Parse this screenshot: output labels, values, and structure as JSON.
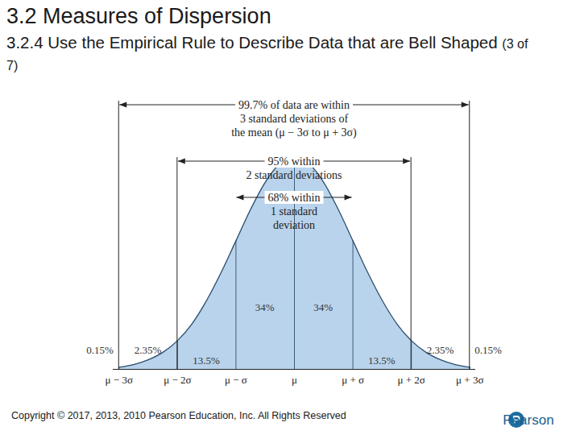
{
  "chart_data": {
    "type": "area",
    "title": "3.2 Measures of Dispersion",
    "subtitle": "3.2.4 Use the Empirical Rule to Describe Data that are Bell Shaped",
    "subtitle_suffix": "(3 of 7)",
    "x": [
      -3,
      -2.75,
      -2.5,
      -2.25,
      -2,
      -1.75,
      -1.5,
      -1.25,
      -1,
      -0.75,
      -0.5,
      -0.25,
      0,
      0.25,
      0.5,
      0.75,
      1,
      1.25,
      1.5,
      1.75,
      2,
      2.25,
      2.5,
      2.75,
      3
    ],
    "values": [
      0.004,
      0.009,
      0.018,
      0.032,
      0.054,
      0.086,
      0.13,
      0.183,
      0.242,
      0.301,
      0.352,
      0.387,
      0.399,
      0.387,
      0.352,
      0.301,
      0.242,
      0.183,
      0.13,
      0.086,
      0.054,
      0.032,
      0.018,
      0.009,
      0.004
    ],
    "color": "#b9d3ec",
    "xlim": [
      -3.1,
      3.1
    ],
    "ylim": [
      0,
      0.42
    ],
    "xticks": [
      {
        "value": -3,
        "label": "μ − 3σ"
      },
      {
        "value": -2,
        "label": "μ − 2σ"
      },
      {
        "value": -1,
        "label": "μ − σ"
      },
      {
        "value": 0,
        "label": "μ"
      },
      {
        "value": 1,
        "label": "μ + σ"
      },
      {
        "value": 2,
        "label": "μ + 2σ"
      },
      {
        "value": 3,
        "label": "μ + 3σ"
      }
    ],
    "tick_labels": "x",
    "grid": false,
    "intervals": [
      {
        "sigmas": 3,
        "text": [
          "99.7% of data are within",
          "3 standard deviations of",
          "the mean (μ − 3σ to μ + 3σ)"
        ]
      },
      {
        "sigmas": 2,
        "text": [
          "95% within",
          "2 standard deviations"
        ]
      },
      {
        "sigmas": 1,
        "text": [
          "68% within",
          "1 standard",
          "deviation"
        ]
      }
    ],
    "region_labels": [
      "0.15%",
      "2.35%",
      "13.5%",
      "34%",
      "34%",
      "13.5%",
      "2.35%",
      "0.15%"
    ],
    "caption": "Copyright © 2017, 2013, 2010 Pearson Education, Inc. All Rights Reserved",
    "logo": {
      "mark": "P",
      "text": "Pearson"
    }
  }
}
